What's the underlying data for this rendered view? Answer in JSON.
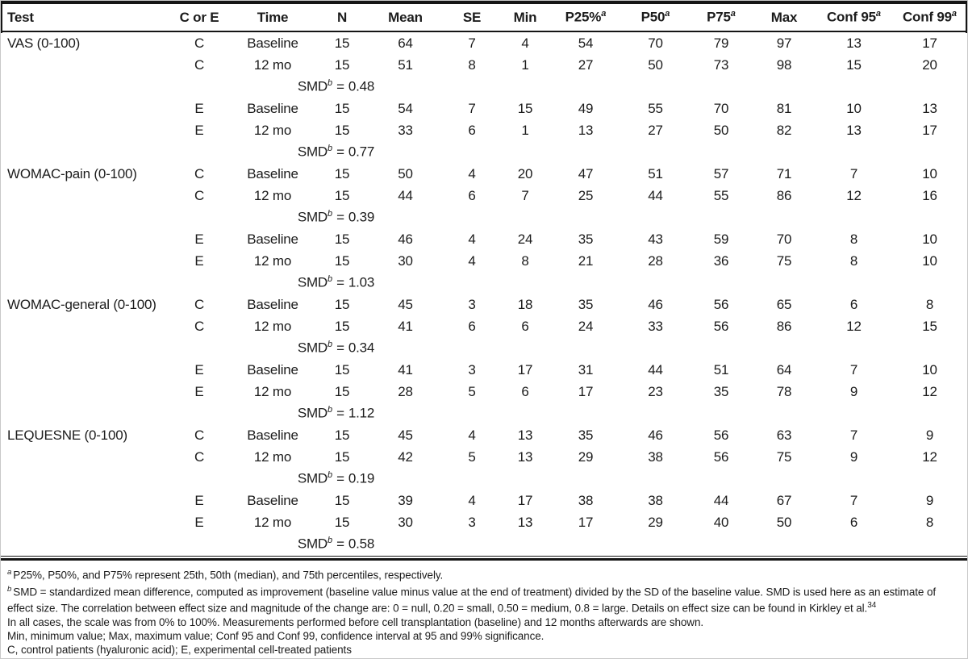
{
  "table": {
    "columns": [
      {
        "id": "test",
        "label": "Test"
      },
      {
        "id": "c-or-e",
        "label": "C or E"
      },
      {
        "id": "time",
        "label": "Time"
      },
      {
        "id": "n",
        "label": "N"
      },
      {
        "id": "mean",
        "label": "Mean"
      },
      {
        "id": "se",
        "label": "SE"
      },
      {
        "id": "min",
        "label": "Min"
      },
      {
        "id": "p25",
        "label": "P25%",
        "sup": "a"
      },
      {
        "id": "p50",
        "label": "P50",
        "sup": "a"
      },
      {
        "id": "p75",
        "label": "P75",
        "sup": "a"
      },
      {
        "id": "max",
        "label": "Max"
      },
      {
        "id": "conf95",
        "label": "Conf 95",
        "sup": "a"
      },
      {
        "id": "conf99",
        "label": "Conf 99",
        "sup": "a"
      }
    ],
    "smd_term": {
      "label": "SMD",
      "sup": "b",
      "eq": "="
    },
    "sections": [
      {
        "test": "VAS (0-100)",
        "rows": [
          {
            "group": "C",
            "time": "Baseline",
            "n": "15",
            "mean": "64",
            "se": "7",
            "min": "4",
            "p25": "54",
            "p50": "70",
            "p75": "79",
            "max": "97",
            "conf95": "13",
            "conf99": "17"
          },
          {
            "group": "C",
            "time": "12 mo",
            "n": "15",
            "mean": "51",
            "se": "8",
            "min": "1",
            "p25": "27",
            "p50": "50",
            "p75": "73",
            "max": "98",
            "conf95": "15",
            "conf99": "20"
          },
          {
            "smd": "0.48"
          },
          {
            "group": "E",
            "time": "Baseline",
            "n": "15",
            "mean": "54",
            "se": "7",
            "min": "15",
            "p25": "49",
            "p50": "55",
            "p75": "70",
            "max": "81",
            "conf95": "10",
            "conf99": "13"
          },
          {
            "group": "E",
            "time": "12 mo",
            "n": "15",
            "mean": "33",
            "se": "6",
            "min": "1",
            "p25": "13",
            "p50": "27",
            "p75": "50",
            "max": "82",
            "conf95": "13",
            "conf99": "17"
          },
          {
            "smd": "0.77"
          }
        ]
      },
      {
        "test": "WOMAC-pain (0-100)",
        "rows": [
          {
            "group": "C",
            "time": "Baseline",
            "n": "15",
            "mean": "50",
            "se": "4",
            "min": "20",
            "p25": "47",
            "p50": "51",
            "p75": "57",
            "max": "71",
            "conf95": "7",
            "conf99": "10"
          },
          {
            "group": "C",
            "time": "12 mo",
            "n": "15",
            "mean": "44",
            "se": "6",
            "min": "7",
            "p25": "25",
            "p50": "44",
            "p75": "55",
            "max": "86",
            "conf95": "12",
            "conf99": "16"
          },
          {
            "smd": "0.39"
          },
          {
            "group": "E",
            "time": "Baseline",
            "n": "15",
            "mean": "46",
            "se": "4",
            "min": "24",
            "p25": "35",
            "p50": "43",
            "p75": "59",
            "max": "70",
            "conf95": "8",
            "conf99": "10"
          },
          {
            "group": "E",
            "time": "12 mo",
            "n": "15",
            "mean": "30",
            "se": "4",
            "min": "8",
            "p25": "21",
            "p50": "28",
            "p75": "36",
            "max": "75",
            "conf95": "8",
            "conf99": "10"
          },
          {
            "smd": "1.03"
          }
        ]
      },
      {
        "test": "WOMAC-general (0-100)",
        "rows": [
          {
            "group": "C",
            "time": "Baseline",
            "n": "15",
            "mean": "45",
            "se": "3",
            "min": "18",
            "p25": "35",
            "p50": "46",
            "p75": "56",
            "max": "65",
            "conf95": "6",
            "conf99": "8"
          },
          {
            "group": "C",
            "time": "12 mo",
            "n": "15",
            "mean": "41",
            "se": "6",
            "min": "6",
            "p25": "24",
            "p50": "33",
            "p75": "56",
            "max": "86",
            "conf95": "12",
            "conf99": "15"
          },
          {
            "smd": "0.34"
          },
          {
            "group": "E",
            "time": "Baseline",
            "n": "15",
            "mean": "41",
            "se": "3",
            "min": "17",
            "p25": "31",
            "p50": "44",
            "p75": "51",
            "max": "64",
            "conf95": "7",
            "conf99": "10"
          },
          {
            "group": "E",
            "time": "12 mo",
            "n": "15",
            "mean": "28",
            "se": "5",
            "min": "6",
            "p25": "17",
            "p50": "23",
            "p75": "35",
            "max": "78",
            "conf95": "9",
            "conf99": "12"
          },
          {
            "smd": "1.12"
          }
        ]
      },
      {
        "test": "LEQUESNE (0-100)",
        "rows": [
          {
            "group": "C",
            "time": "Baseline",
            "n": "15",
            "mean": "45",
            "se": "4",
            "min": "13",
            "p25": "35",
            "p50": "46",
            "p75": "56",
            "max": "63",
            "conf95": "7",
            "conf99": "9"
          },
          {
            "group": "C",
            "time": "12 mo",
            "n": "15",
            "mean": "42",
            "se": "5",
            "min": "13",
            "p25": "29",
            "p50": "38",
            "p75": "56",
            "max": "75",
            "conf95": "9",
            "conf99": "12"
          },
          {
            "smd": "0.19"
          },
          {
            "group": "E",
            "time": "Baseline",
            "n": "15",
            "mean": "39",
            "se": "4",
            "min": "17",
            "p25": "38",
            "p50": "38",
            "p75": "44",
            "max": "67",
            "conf95": "7",
            "conf99": "9"
          },
          {
            "group": "E",
            "time": "12 mo",
            "n": "15",
            "mean": "30",
            "se": "3",
            "min": "13",
            "p25": "17",
            "p50": "29",
            "p75": "40",
            "max": "50",
            "conf95": "6",
            "conf99": "8"
          },
          {
            "smd": "0.58"
          }
        ]
      }
    ]
  },
  "footnotes": [
    {
      "marker": "a",
      "text": "P25%, P50%, and P75% represent 25th, 50th (median), and 75th percentiles, respectively."
    },
    {
      "marker": "b",
      "text": "SMD = standardized mean difference, computed as improvement (baseline value minus value at the end of treatment) divided by the SD of the baseline value. SMD is used here as an estimate of effect size. The correlation between effect size and magnitude of the change are: 0 = null, 0.20 = small, 0.50 = medium, 0.8 = large. Details on effect size can be found in Kirkley et al.",
      "ref": "34"
    },
    {
      "text": "In all cases, the scale was from 0% to 100%. Measurements performed before cell transplantation (baseline) and 12 months afterwards are shown."
    },
    {
      "text": "Min, minimum value; Max, maximum value; Conf 95 and Conf 99, confidence interval at 95 and 99% significance."
    },
    {
      "text": "C, control patients (hyaluronic acid); E, experimental cell-treated patients"
    }
  ]
}
